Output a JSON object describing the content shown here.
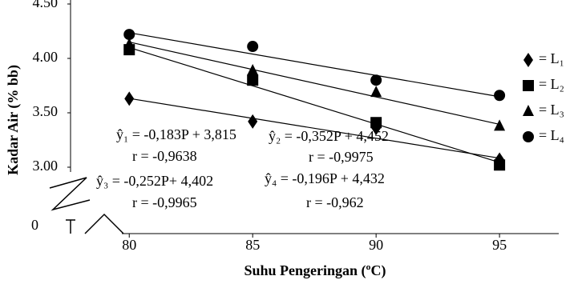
{
  "chart_data": {
    "type": "scatter",
    "x_label": "Suhu Pengeringan (ºC)",
    "y_label": "Kadar Air (% bb)",
    "x": [
      80,
      85,
      90,
      95
    ],
    "xlim": [
      79.7,
      97.4
    ],
    "xticks": [
      80,
      85,
      90,
      95
    ],
    "ylim": [
      3.0,
      4.5
    ],
    "yticks": [
      {
        "value": 3.0,
        "label": "3.00"
      },
      {
        "value": 3.5,
        "label": "3.50"
      },
      {
        "value": 4.0,
        "label": "4.00"
      },
      {
        "value": 4.5,
        "label": "4.50"
      }
    ],
    "y_break_tick": 0,
    "series": [
      {
        "name": "= L₁",
        "marker": "diamond",
        "color": "#000",
        "values": [
          3.63,
          3.42,
          3.36,
          3.07
        ],
        "trend": {
          "slope": -0.183,
          "intercept": 3.815
        },
        "equation": "ŷ₁ = -0,183P + 3,815",
        "r": "r = -0,9638"
      },
      {
        "name": "= L₂",
        "marker": "square",
        "color": "#000",
        "values": [
          4.08,
          3.8,
          3.41,
          3.02
        ],
        "trend": {
          "slope": -0.352,
          "intercept": 4.452
        },
        "equation": "ŷ₂ = -0,352P + 4,452",
        "r": "r = -0,9975"
      },
      {
        "name": "= L₃",
        "marker": "triangle",
        "color": "#000",
        "values": [
          4.13,
          3.89,
          3.69,
          3.38
        ],
        "trend": {
          "slope": -0.252,
          "intercept": 4.402
        },
        "equation": "ŷ₃ = -0,252P+ 4,402",
        "r": "r = -0,9965"
      },
      {
        "name": "= L₄",
        "marker": "circle",
        "color": "#000",
        "values": [
          4.22,
          4.11,
          3.8,
          3.66
        ],
        "trend": {
          "slope": -0.196,
          "intercept": 4.432
        },
        "equation": "ŷ₄ = -0,196P + 4,432",
        "r": "r = -0,962"
      }
    ]
  }
}
